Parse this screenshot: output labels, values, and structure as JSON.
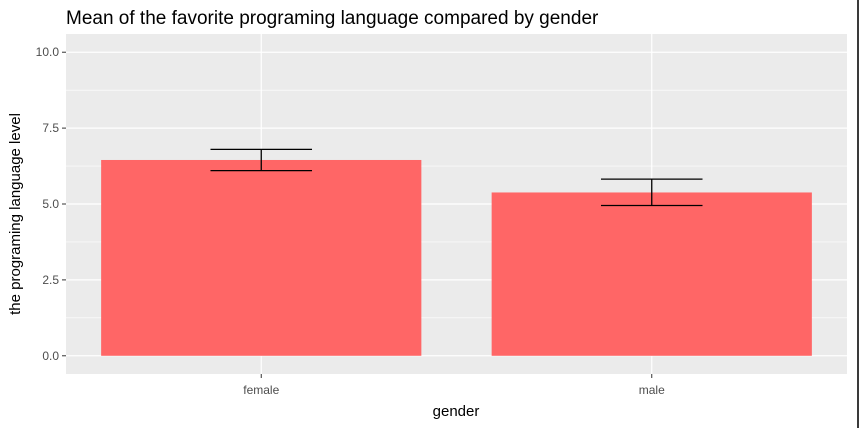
{
  "chart_data": {
    "type": "bar",
    "title": "Mean of the favorite programing language compared by gender",
    "xlabel": "gender",
    "ylabel": "the programing language level",
    "categories": [
      "female",
      "male"
    ],
    "values": [
      6.45,
      5.38
    ],
    "error_low": [
      6.1,
      4.95
    ],
    "error_high": [
      6.8,
      5.82
    ],
    "ylim": [
      -0.6,
      10.6
    ],
    "yticks": [
      0,
      2.5,
      5,
      7.5,
      10
    ],
    "ytick_labels": [
      "0.0",
      "2.5",
      "5.0",
      "7.5",
      "10.0"
    ],
    "grid": true,
    "legend": "none",
    "colors": {
      "bar": "#ff6666",
      "panel": "#ebebeb",
      "gridline": "#ffffff",
      "errorbar": "#000000"
    }
  }
}
